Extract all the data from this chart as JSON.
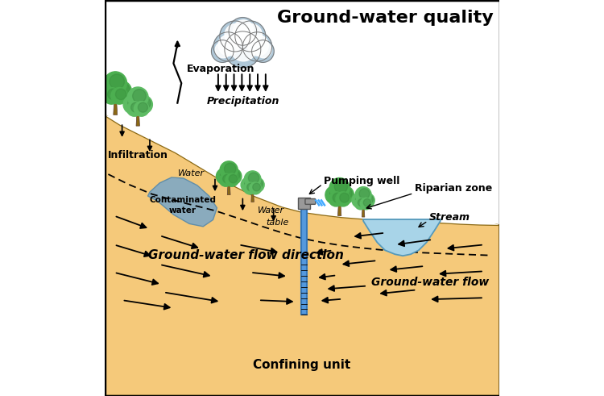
{
  "title": "Ground-water quality",
  "title_fontsize": 16,
  "background_color": "#ffffff",
  "ground_color": "#F5C97A",
  "confining_color": "#D4A96A",
  "stream_color": "#A8D4E8",
  "contaminated_color": "#7BA7C7",
  "labels": {
    "precipitation": "Precipitation",
    "evaporation": "Evaporation",
    "pumping_well": "Pumping well",
    "riparian_zone": "Riparian zone",
    "stream": "Stream",
    "infiltration": "Infiltration",
    "water": "Water",
    "table": "table",
    "contaminated_water": "Contaminated\nwater",
    "gw_flow_direction": "Ground-water flow direction",
    "gw_flow": "Ground-water flow",
    "confining_unit": "Confining unit"
  }
}
